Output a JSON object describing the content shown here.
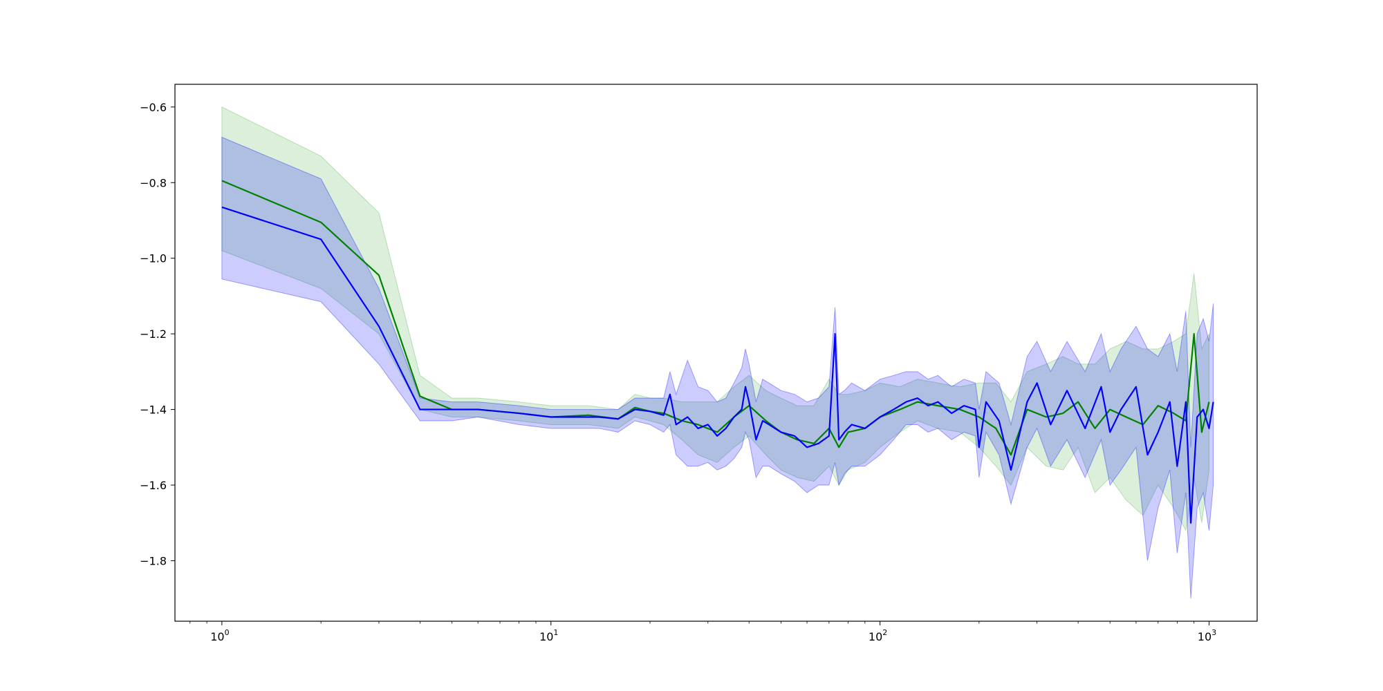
{
  "chart_data": {
    "type": "line",
    "title": "",
    "xlabel": "",
    "ylabel": "",
    "xscale": "log",
    "xlim": [
      0.72,
      1400
    ],
    "ylim": [
      -1.96,
      -0.54
    ],
    "grid": false,
    "legend": "none",
    "x_ticks": [
      {
        "base": "10",
        "exp": "0",
        "value": 1
      },
      {
        "base": "10",
        "exp": "1",
        "value": 10
      },
      {
        "base": "10",
        "exp": "2",
        "value": 100
      },
      {
        "base": "10",
        "exp": "3",
        "value": 1000
      }
    ],
    "y_ticks": [
      {
        "label": "−0.6",
        "value": -0.6
      },
      {
        "label": "−0.8",
        "value": -0.8
      },
      {
        "label": "−1.0",
        "value": -1.0
      },
      {
        "label": "−1.2",
        "value": -1.2
      },
      {
        "label": "−1.4",
        "value": -1.4
      },
      {
        "label": "−1.6",
        "value": -1.6
      },
      {
        "label": "−1.8",
        "value": -1.8
      }
    ],
    "series": [
      {
        "color": "#008000",
        "band_color": "#4daf4a",
        "x": [
          1,
          2,
          3,
          4,
          5,
          6,
          8,
          10,
          13,
          16,
          18,
          20,
          22,
          25,
          28,
          32,
          36,
          40,
          45,
          50,
          56,
          63,
          70,
          75,
          80,
          90,
          100,
          115,
          130,
          150,
          175,
          200,
          225,
          250,
          280,
          320,
          360,
          400,
          450,
          500,
          560,
          630,
          700,
          780,
          850,
          900,
          950,
          1000
        ],
        "y": [
          -0.795,
          -0.905,
          -1.045,
          -1.365,
          -1.4,
          -1.4,
          -1.41,
          -1.42,
          -1.415,
          -1.425,
          -1.395,
          -1.405,
          -1.41,
          -1.43,
          -1.44,
          -1.46,
          -1.42,
          -1.39,
          -1.43,
          -1.46,
          -1.48,
          -1.49,
          -1.45,
          -1.5,
          -1.46,
          -1.45,
          -1.42,
          -1.4,
          -1.38,
          -1.39,
          -1.4,
          -1.42,
          -1.45,
          -1.52,
          -1.4,
          -1.42,
          -1.41,
          -1.38,
          -1.45,
          -1.4,
          -1.42,
          -1.44,
          -1.39,
          -1.41,
          -1.43,
          -1.2,
          -1.46,
          -1.38
        ],
        "lower": [
          -0.98,
          -1.08,
          -1.2,
          -1.4,
          -1.42,
          -1.42,
          -1.43,
          -1.44,
          -1.44,
          -1.45,
          -1.42,
          -1.43,
          -1.44,
          -1.48,
          -1.52,
          -1.54,
          -1.5,
          -1.47,
          -1.52,
          -1.56,
          -1.58,
          -1.59,
          -1.55,
          -1.6,
          -1.56,
          -1.54,
          -1.5,
          -1.46,
          -1.43,
          -1.45,
          -1.46,
          -1.5,
          -1.55,
          -1.6,
          -1.5,
          -1.55,
          -1.56,
          -1.5,
          -1.62,
          -1.58,
          -1.64,
          -1.68,
          -1.6,
          -1.66,
          -1.72,
          -1.58,
          -1.7,
          -1.56
        ],
        "upper": [
          -0.6,
          -0.73,
          -0.88,
          -1.31,
          -1.37,
          -1.37,
          -1.38,
          -1.39,
          -1.39,
          -1.4,
          -1.36,
          -1.37,
          -1.37,
          -1.38,
          -1.38,
          -1.38,
          -1.34,
          -1.31,
          -1.35,
          -1.37,
          -1.39,
          -1.39,
          -1.32,
          -1.36,
          -1.36,
          -1.35,
          -1.33,
          -1.34,
          -1.32,
          -1.33,
          -1.34,
          -1.33,
          -1.33,
          -1.38,
          -1.3,
          -1.28,
          -1.26,
          -1.28,
          -1.28,
          -1.24,
          -1.22,
          -1.24,
          -1.24,
          -1.22,
          -1.2,
          -1.04,
          -1.24,
          -1.2
        ]
      },
      {
        "color": "#0000ff",
        "band_color": "#0000ff",
        "x": [
          1,
          2,
          3,
          4,
          5,
          6,
          8,
          10,
          12,
          14,
          16,
          18,
          20,
          22,
          23,
          24,
          26,
          28,
          30,
          32,
          34,
          36,
          38,
          39,
          40,
          42,
          44,
          46,
          50,
          55,
          60,
          65,
          70,
          73,
          75,
          78,
          82,
          90,
          100,
          110,
          120,
          130,
          140,
          150,
          165,
          180,
          195,
          200,
          210,
          230,
          250,
          280,
          300,
          330,
          370,
          420,
          470,
          500,
          540,
          600,
          650,
          700,
          760,
          800,
          850,
          880,
          920,
          960,
          1000,
          1030
        ],
        "y": [
          -0.865,
          -0.95,
          -1.18,
          -1.4,
          -1.4,
          -1.4,
          -1.41,
          -1.42,
          -1.42,
          -1.42,
          -1.425,
          -1.4,
          -1.405,
          -1.415,
          -1.36,
          -1.44,
          -1.42,
          -1.45,
          -1.44,
          -1.47,
          -1.45,
          -1.42,
          -1.4,
          -1.34,
          -1.38,
          -1.48,
          -1.43,
          -1.44,
          -1.46,
          -1.47,
          -1.5,
          -1.49,
          -1.47,
          -1.2,
          -1.48,
          -1.46,
          -1.44,
          -1.45,
          -1.42,
          -1.4,
          -1.38,
          -1.37,
          -1.39,
          -1.38,
          -1.41,
          -1.39,
          -1.4,
          -1.5,
          -1.38,
          -1.43,
          -1.56,
          -1.38,
          -1.33,
          -1.44,
          -1.35,
          -1.45,
          -1.34,
          -1.46,
          -1.4,
          -1.34,
          -1.52,
          -1.46,
          -1.38,
          -1.55,
          -1.38,
          -1.7,
          -1.42,
          -1.4,
          -1.45,
          -1.38
        ],
        "lower": [
          -1.055,
          -1.115,
          -1.28,
          -1.43,
          -1.43,
          -1.42,
          -1.44,
          -1.45,
          -1.45,
          -1.45,
          -1.46,
          -1.43,
          -1.44,
          -1.46,
          -1.44,
          -1.52,
          -1.55,
          -1.55,
          -1.54,
          -1.56,
          -1.55,
          -1.53,
          -1.5,
          -1.46,
          -1.48,
          -1.58,
          -1.55,
          -1.55,
          -1.57,
          -1.59,
          -1.62,
          -1.6,
          -1.6,
          -1.54,
          -1.6,
          -1.57,
          -1.55,
          -1.55,
          -1.52,
          -1.48,
          -1.44,
          -1.44,
          -1.46,
          -1.45,
          -1.48,
          -1.46,
          -1.47,
          -1.58,
          -1.46,
          -1.52,
          -1.65,
          -1.5,
          -1.45,
          -1.55,
          -1.48,
          -1.58,
          -1.48,
          -1.6,
          -1.56,
          -1.5,
          -1.8,
          -1.66,
          -1.56,
          -1.78,
          -1.62,
          -1.9,
          -1.66,
          -1.62,
          -1.72,
          -1.6
        ],
        "upper": [
          -0.68,
          -0.79,
          -1.08,
          -1.37,
          -1.38,
          -1.38,
          -1.39,
          -1.4,
          -1.4,
          -1.4,
          -1.4,
          -1.37,
          -1.37,
          -1.37,
          -1.3,
          -1.36,
          -1.27,
          -1.34,
          -1.35,
          -1.38,
          -1.37,
          -1.33,
          -1.29,
          -1.24,
          -1.28,
          -1.38,
          -1.32,
          -1.33,
          -1.35,
          -1.36,
          -1.38,
          -1.37,
          -1.34,
          -1.13,
          -1.36,
          -1.35,
          -1.33,
          -1.35,
          -1.32,
          -1.31,
          -1.3,
          -1.3,
          -1.32,
          -1.31,
          -1.34,
          -1.32,
          -1.33,
          -1.4,
          -1.3,
          -1.33,
          -1.44,
          -1.26,
          -1.22,
          -1.3,
          -1.22,
          -1.3,
          -1.2,
          -1.3,
          -1.24,
          -1.18,
          -1.24,
          -1.26,
          -1.2,
          -1.3,
          -1.14,
          -1.5,
          -1.2,
          -1.16,
          -1.22,
          -1.12
        ]
      }
    ]
  }
}
